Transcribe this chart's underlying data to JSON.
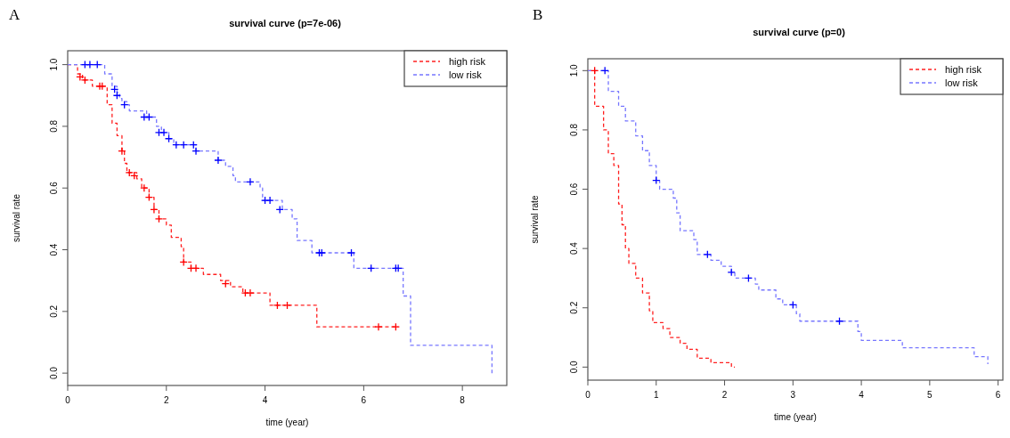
{
  "chart_data": [
    {
      "type": "step",
      "title": "survival curve (p=7e-06)",
      "xlabel": "time (year)",
      "ylabel": "survival rate",
      "annotations": [
        "A"
      ],
      "xlim": [
        0,
        8.9
      ],
      "xticks": [
        0,
        2,
        4,
        6,
        8
      ],
      "ylim": [
        -0.04,
        1.045
      ],
      "yticks": [
        {
          "value": 0,
          "label": "0.0"
        },
        {
          "value": 0.2,
          "label": "0.2"
        },
        {
          "value": 0.4,
          "label": "0.4"
        },
        {
          "value": 0.6,
          "label": "0.6"
        },
        {
          "value": 0.8,
          "label": "0.8"
        },
        {
          "value": 1,
          "label": "1.0"
        }
      ],
      "legend": "top right",
      "line_style": "dashed",
      "series": [
        {
          "name": "high risk",
          "color": "#ff2020",
          "x": [
            0,
            0.2,
            0.3,
            0.5,
            0.8,
            0.9,
            1.0,
            1.1,
            1.15,
            1.2,
            1.4,
            1.5,
            1.65,
            1.75,
            1.85,
            2.0,
            2.1,
            2.3,
            2.35,
            2.5,
            2.75,
            3.1,
            3.3,
            3.55,
            4.1,
            5.05,
            6.7
          ],
          "values": [
            1.0,
            0.97,
            0.95,
            0.93,
            0.87,
            0.81,
            0.77,
            0.72,
            0.68,
            0.65,
            0.63,
            0.6,
            0.57,
            0.53,
            0.5,
            0.48,
            0.44,
            0.41,
            0.36,
            0.34,
            0.32,
            0.3,
            0.28,
            0.26,
            0.22,
            0.15,
            0.15
          ]
        },
        {
          "name": "low risk",
          "color": "#7777ff",
          "x": [
            0,
            0.75,
            0.9,
            1.0,
            1.05,
            1.1,
            1.2,
            1.25,
            1.6,
            1.8,
            1.9,
            2.05,
            2.15,
            2.6,
            3.05,
            3.2,
            3.35,
            3.4,
            3.9,
            3.95,
            4.35,
            4.55,
            4.65,
            4.95,
            5.8,
            6.8,
            6.95,
            8.6,
            8.6
          ],
          "values": [
            1.0,
            0.97,
            0.93,
            0.91,
            0.89,
            0.88,
            0.87,
            0.85,
            0.83,
            0.8,
            0.78,
            0.76,
            0.74,
            0.72,
            0.69,
            0.67,
            0.64,
            0.62,
            0.6,
            0.56,
            0.53,
            0.5,
            0.43,
            0.39,
            0.34,
            0.25,
            0.09,
            0.09,
            0
          ]
        },
        {
          "type": "scatter",
          "marker": "cross",
          "color": "#ff0000",
          "x": [
            0.25,
            0.35,
            0.65,
            0.7,
            1.1,
            1.25,
            1.35,
            1.55,
            1.65,
            1.75,
            1.85,
            2.35,
            2.5,
            2.6,
            3.2,
            3.6,
            3.7,
            4.25,
            4.45,
            6.3,
            6.65
          ],
          "values": [
            0.96,
            0.95,
            0.93,
            0.93,
            0.72,
            0.65,
            0.64,
            0.6,
            0.57,
            0.53,
            0.5,
            0.36,
            0.34,
            0.34,
            0.29,
            0.26,
            0.26,
            0.22,
            0.22,
            0.15,
            0.15
          ]
        },
        {
          "type": "scatter",
          "marker": "cross",
          "color": "#0000ff",
          "x": [
            0.35,
            0.45,
            0.6,
            0.95,
            1.0,
            1.15,
            1.55,
            1.65,
            1.85,
            1.95,
            2.05,
            2.2,
            2.35,
            2.55,
            2.6,
            3.05,
            3.7,
            4.0,
            4.1,
            4.3,
            5.1,
            5.15,
            5.75,
            6.15,
            6.65,
            6.7
          ],
          "values": [
            1.0,
            1.0,
            1.0,
            0.92,
            0.9,
            0.87,
            0.83,
            0.83,
            0.78,
            0.78,
            0.76,
            0.74,
            0.74,
            0.74,
            0.72,
            0.69,
            0.62,
            0.56,
            0.56,
            0.53,
            0.39,
            0.39,
            0.39,
            0.34,
            0.34,
            0.34
          ]
        }
      ]
    },
    {
      "type": "step",
      "title": "survival curve (p=0)",
      "xlabel": "time (year)",
      "ylabel": "survival rate",
      "annotations": [
        "B"
      ],
      "xlim": [
        0,
        6.07
      ],
      "xticks": [
        0,
        1,
        2,
        3,
        4,
        5,
        6
      ],
      "ylim": [
        -0.044,
        1.04
      ],
      "yticks": [
        {
          "value": 0,
          "label": "0.0"
        },
        {
          "value": 0.2,
          "label": "0.2"
        },
        {
          "value": 0.4,
          "label": "0.4"
        },
        {
          "value": 0.6,
          "label": "0.6"
        },
        {
          "value": 0.8,
          "label": "0.8"
        },
        {
          "value": 1,
          "label": "1.0"
        }
      ],
      "legend": "top right",
      "line_style": "dashed",
      "series": [
        {
          "name": "high risk",
          "color": "#ff2020",
          "x": [
            0,
            0.1,
            0.23,
            0.3,
            0.38,
            0.45,
            0.5,
            0.55,
            0.6,
            0.7,
            0.8,
            0.9,
            0.95,
            1.1,
            1.2,
            1.35,
            1.45,
            1.6,
            1.8,
            2.1,
            2.15
          ],
          "values": [
            1.0,
            0.88,
            0.8,
            0.72,
            0.68,
            0.55,
            0.48,
            0.4,
            0.35,
            0.3,
            0.25,
            0.19,
            0.15,
            0.13,
            0.1,
            0.08,
            0.06,
            0.03,
            0.015,
            0.0,
            0.0
          ]
        },
        {
          "name": "low risk",
          "color": "#7777ff",
          "x": [
            0,
            0.3,
            0.45,
            0.55,
            0.7,
            0.8,
            0.9,
            1.0,
            1.05,
            1.25,
            1.3,
            1.35,
            1.55,
            1.6,
            1.8,
            1.95,
            2.1,
            2.15,
            2.45,
            2.5,
            2.75,
            2.85,
            3.05,
            3.1,
            3.95,
            4.0,
            4.6,
            5.65,
            5.85
          ],
          "values": [
            1.0,
            0.93,
            0.88,
            0.83,
            0.78,
            0.73,
            0.68,
            0.63,
            0.6,
            0.57,
            0.52,
            0.46,
            0.43,
            0.38,
            0.36,
            0.34,
            0.32,
            0.3,
            0.28,
            0.26,
            0.23,
            0.21,
            0.18,
            0.155,
            0.12,
            0.09,
            0.065,
            0.035,
            0.01
          ]
        },
        {
          "type": "scatter",
          "marker": "cross",
          "color": "#ff0000",
          "x": [
            0.1
          ],
          "values": [
            1.0
          ]
        },
        {
          "type": "scatter",
          "marker": "cross",
          "color": "#0000ff",
          "x": [
            0.25,
            1.0,
            1.75,
            2.1,
            2.35,
            3.0,
            3.68
          ],
          "values": [
            1.0,
            0.63,
            0.38,
            0.32,
            0.3,
            0.21,
            0.155
          ]
        }
      ]
    }
  ]
}
